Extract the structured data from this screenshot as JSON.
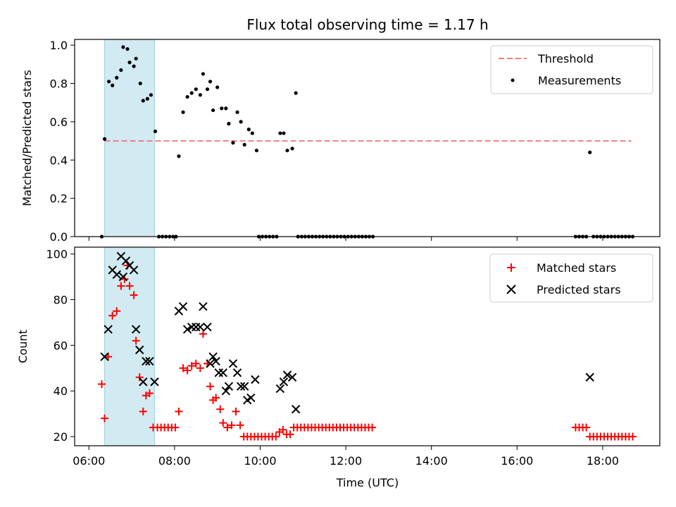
{
  "chart_data": {
    "title": "Flux total observing time = 1.17 h",
    "xlabel": "Time (UTC)",
    "x_unit": "hours UTC",
    "xlim": [
      "05:40",
      "19:20"
    ],
    "x_ticks": [
      "06:00",
      "08:00",
      "10:00",
      "12:00",
      "14:00",
      "16:00",
      "18:00"
    ],
    "shaded_interval": {
      "start": "06:22",
      "end": "07:32",
      "color": "#add8e6"
    },
    "panels": [
      {
        "type": "scatter",
        "ylabel": "Matched/Predicted stars",
        "ylim": [
          0,
          1.03
        ],
        "y_ticks": [
          "0.0",
          "0.2",
          "0.4",
          "0.6",
          "0.8",
          "1.0"
        ],
        "legend_position": "top-right",
        "threshold": {
          "name": "Threshold",
          "value": 0.5,
          "x_range": [
            "06:22",
            "18:40"
          ],
          "color": "#f08080",
          "style": "dashed"
        },
        "series": [
          {
            "name": "Measurements",
            "marker": "dot",
            "color": "#000000",
            "points": [
              [
                "06:18",
                0.0
              ],
              [
                "06:22",
                0.51
              ],
              [
                "06:28",
                0.81
              ],
              [
                "06:33",
                0.79
              ],
              [
                "06:39",
                0.83
              ],
              [
                "06:45",
                0.87
              ],
              [
                "06:48",
                0.99
              ],
              [
                "06:54",
                0.98
              ],
              [
                "06:57",
                0.91
              ],
              [
                "07:03",
                0.89
              ],
              [
                "07:06",
                0.93
              ],
              [
                "07:12",
                0.8
              ],
              [
                "07:16",
                0.71
              ],
              [
                "07:22",
                0.72
              ],
              [
                "07:27",
                0.74
              ],
              [
                "07:33",
                0.55
              ],
              [
                "07:38",
                0.0
              ],
              [
                "07:43",
                0.0
              ],
              [
                "07:48",
                0.0
              ],
              [
                "07:53",
                0.0
              ],
              [
                "07:58",
                0.0
              ],
              [
                "08:02",
                0.0
              ],
              [
                "08:06",
                0.42
              ],
              [
                "08:12",
                0.65
              ],
              [
                "08:18",
                0.73
              ],
              [
                "08:24",
                0.75
              ],
              [
                "08:30",
                0.77
              ],
              [
                "08:36",
                0.74
              ],
              [
                "08:40",
                0.85
              ],
              [
                "08:46",
                0.77
              ],
              [
                "08:50",
                0.81
              ],
              [
                "08:54",
                0.66
              ],
              [
                "09:00",
                0.78
              ],
              [
                "09:06",
                0.67
              ],
              [
                "09:12",
                0.67
              ],
              [
                "09:16",
                0.59
              ],
              [
                "09:22",
                0.49
              ],
              [
                "09:28",
                0.65
              ],
              [
                "09:33",
                0.6
              ],
              [
                "09:38",
                0.48
              ],
              [
                "09:44",
                0.56
              ],
              [
                "09:49",
                0.54
              ],
              [
                "09:55",
                0.45
              ],
              [
                "09:58",
                0.0
              ],
              [
                "10:03",
                0.0
              ],
              [
                "10:08",
                0.0
              ],
              [
                "10:13",
                0.0
              ],
              [
                "10:18",
                0.0
              ],
              [
                "10:23",
                0.0
              ],
              [
                "10:28",
                0.54
              ],
              [
                "10:33",
                0.54
              ],
              [
                "10:38",
                0.45
              ],
              [
                "10:45",
                0.46
              ],
              [
                "10:50",
                0.75
              ],
              [
                "10:53",
                0.0
              ],
              [
                "10:58",
                0.0
              ],
              [
                "11:03",
                0.0
              ],
              [
                "11:08",
                0.0
              ],
              [
                "11:13",
                0.0
              ],
              [
                "11:18",
                0.0
              ],
              [
                "11:23",
                0.0
              ],
              [
                "11:28",
                0.0
              ],
              [
                "11:33",
                0.0
              ],
              [
                "11:38",
                0.0
              ],
              [
                "11:43",
                0.0
              ],
              [
                "11:48",
                0.0
              ],
              [
                "11:53",
                0.0
              ],
              [
                "11:58",
                0.0
              ],
              [
                "12:03",
                0.0
              ],
              [
                "12:08",
                0.0
              ],
              [
                "12:13",
                0.0
              ],
              [
                "12:18",
                0.0
              ],
              [
                "12:23",
                0.0
              ],
              [
                "12:28",
                0.0
              ],
              [
                "12:33",
                0.0
              ],
              [
                "12:38",
                0.0
              ],
              [
                "17:22",
                0.0
              ],
              [
                "17:27",
                0.0
              ],
              [
                "17:32",
                0.0
              ],
              [
                "17:37",
                0.0
              ],
              [
                "17:42",
                0.44
              ],
              [
                "17:47",
                0.0
              ],
              [
                "17:52",
                0.0
              ],
              [
                "17:57",
                0.0
              ],
              [
                "18:02",
                0.0
              ],
              [
                "18:07",
                0.0
              ],
              [
                "18:12",
                0.0
              ],
              [
                "18:17",
                0.0
              ],
              [
                "18:22",
                0.0
              ],
              [
                "18:27",
                0.0
              ],
              [
                "18:32",
                0.0
              ],
              [
                "18:37",
                0.0
              ],
              [
                "18:42",
                0.0
              ]
            ]
          }
        ]
      },
      {
        "type": "scatter",
        "ylabel": "Count",
        "ylim": [
          16,
          103
        ],
        "y_ticks": [
          "20",
          "40",
          "60",
          "80",
          "100"
        ],
        "legend_position": "top-right",
        "series": [
          {
            "name": "Matched stars",
            "marker": "plus",
            "color": "#ff0000",
            "points": [
              [
                "06:18",
                43
              ],
              [
                "06:22",
                28
              ],
              [
                "06:27",
                55
              ],
              [
                "06:33",
                73
              ],
              [
                "06:39",
                75
              ],
              [
                "06:45",
                86
              ],
              [
                "06:50",
                89
              ],
              [
                "06:54",
                95
              ],
              [
                "06:57",
                86
              ],
              [
                "07:03",
                82
              ],
              [
                "07:06",
                62
              ],
              [
                "07:11",
                46
              ],
              [
                "07:16",
                31
              ],
              [
                "07:20",
                38
              ],
              [
                "07:25",
                39
              ],
              [
                "07:30",
                24
              ],
              [
                "07:36",
                24
              ],
              [
                "07:41",
                24
              ],
              [
                "07:46",
                24
              ],
              [
                "07:51",
                24
              ],
              [
                "07:56",
                24
              ],
              [
                "08:01",
                24
              ],
              [
                "08:06",
                31
              ],
              [
                "08:12",
                50
              ],
              [
                "08:18",
                49
              ],
              [
                "08:24",
                51
              ],
              [
                "08:30",
                52
              ],
              [
                "08:36",
                50
              ],
              [
                "08:40",
                65
              ],
              [
                "08:46",
                52
              ],
              [
                "08:50",
                42
              ],
              [
                "08:54",
                36
              ],
              [
                "08:58",
                37
              ],
              [
                "09:04",
                32
              ],
              [
                "09:08",
                26
              ],
              [
                "09:14",
                24
              ],
              [
                "09:20",
                25
              ],
              [
                "09:26",
                31
              ],
              [
                "09:32",
                25
              ],
              [
                "09:37",
                20
              ],
              [
                "09:42",
                20
              ],
              [
                "09:47",
                20
              ],
              [
                "09:52",
                20
              ],
              [
                "09:57",
                20
              ],
              [
                "10:02",
                20
              ],
              [
                "10:07",
                20
              ],
              [
                "10:12",
                20
              ],
              [
                "10:17",
                20
              ],
              [
                "10:22",
                20
              ],
              [
                "10:27",
                22
              ],
              [
                "10:32",
                23
              ],
              [
                "10:37",
                21
              ],
              [
                "10:42",
                21
              ],
              [
                "10:47",
                24
              ],
              [
                "10:52",
                24
              ],
              [
                "10:57",
                24
              ],
              [
                "11:02",
                24
              ],
              [
                "11:07",
                24
              ],
              [
                "11:12",
                24
              ],
              [
                "11:17",
                24
              ],
              [
                "11:22",
                24
              ],
              [
                "11:27",
                24
              ],
              [
                "11:32",
                24
              ],
              [
                "11:37",
                24
              ],
              [
                "11:42",
                24
              ],
              [
                "11:47",
                24
              ],
              [
                "11:52",
                24
              ],
              [
                "11:57",
                24
              ],
              [
                "12:02",
                24
              ],
              [
                "12:07",
                24
              ],
              [
                "12:12",
                24
              ],
              [
                "12:17",
                24
              ],
              [
                "12:22",
                24
              ],
              [
                "12:27",
                24
              ],
              [
                "12:32",
                24
              ],
              [
                "12:37",
                24
              ],
              [
                "17:22",
                24
              ],
              [
                "17:27",
                24
              ],
              [
                "17:32",
                24
              ],
              [
                "17:37",
                24
              ],
              [
                "17:42",
                20
              ],
              [
                "17:47",
                20
              ],
              [
                "17:52",
                20
              ],
              [
                "17:57",
                20
              ],
              [
                "18:02",
                20
              ],
              [
                "18:07",
                20
              ],
              [
                "18:12",
                20
              ],
              [
                "18:17",
                20
              ],
              [
                "18:22",
                20
              ],
              [
                "18:27",
                20
              ],
              [
                "18:32",
                20
              ],
              [
                "18:37",
                20
              ],
              [
                "18:42",
                20
              ]
            ]
          },
          {
            "name": "Predicted stars",
            "marker": "cross",
            "color": "#000000",
            "points": [
              [
                "06:22",
                55
              ],
              [
                "06:27",
                67
              ],
              [
                "06:33",
                93
              ],
              [
                "06:39",
                91
              ],
              [
                "06:45",
                99
              ],
              [
                "06:48",
                90
              ],
              [
                "06:52",
                97
              ],
              [
                "06:57",
                95
              ],
              [
                "07:03",
                93
              ],
              [
                "07:06",
                67
              ],
              [
                "07:11",
                58
              ],
              [
                "07:16",
                44
              ],
              [
                "07:20",
                53
              ],
              [
                "07:25",
                53
              ],
              [
                "07:32",
                44
              ],
              [
                "08:06",
                75
              ],
              [
                "08:12",
                77
              ],
              [
                "08:18",
                67
              ],
              [
                "08:24",
                68
              ],
              [
                "08:30",
                68
              ],
              [
                "08:36",
                68
              ],
              [
                "08:40",
                77
              ],
              [
                "08:46",
                68
              ],
              [
                "08:50",
                52
              ],
              [
                "08:54",
                55
              ],
              [
                "08:58",
                53
              ],
              [
                "09:02",
                48
              ],
              [
                "09:08",
                48
              ],
              [
                "09:12",
                40
              ],
              [
                "09:16",
                42
              ],
              [
                "09:22",
                52
              ],
              [
                "09:28",
                48
              ],
              [
                "09:33",
                42
              ],
              [
                "09:38",
                42
              ],
              [
                "09:42",
                36
              ],
              [
                "09:47",
                37
              ],
              [
                "09:53",
                45
              ],
              [
                "10:28",
                41
              ],
              [
                "10:33",
                44
              ],
              [
                "10:38",
                47
              ],
              [
                "10:45",
                46
              ],
              [
                "10:50",
                32
              ],
              [
                "17:42",
                46
              ]
            ]
          }
        ]
      }
    ]
  }
}
